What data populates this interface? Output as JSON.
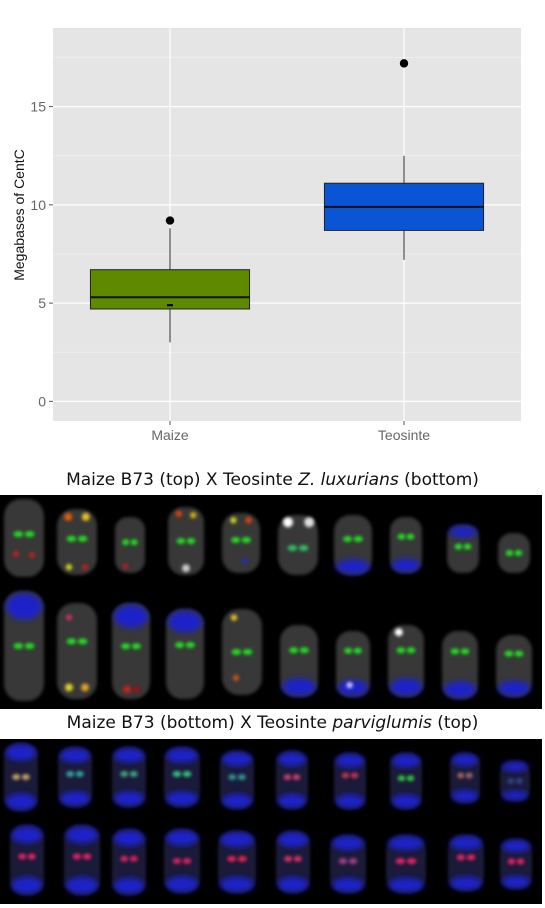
{
  "chart_data": {
    "type": "box",
    "ylabel": "Megabases of CentC",
    "xlabel": "",
    "ylim": [
      -1,
      19
    ],
    "yticks": [
      0,
      5,
      10,
      15
    ],
    "categories": [
      "Maize",
      "Teosinte"
    ],
    "grid": true,
    "boxes": [
      {
        "category": "Maize",
        "color": "#5e8a00",
        "whisker_low": 3.0,
        "q1": 4.7,
        "median": 5.3,
        "q3": 6.7,
        "whisker_high": 8.8,
        "outliers": [
          9.2
        ],
        "extra_points": [
          4.9
        ]
      },
      {
        "category": "Teosinte",
        "color": "#0a55d6",
        "whisker_low": 7.2,
        "q1": 8.7,
        "median": 9.9,
        "q3": 11.1,
        "whisker_high": 12.5,
        "outliers": [
          17.2
        ],
        "extra_points": []
      }
    ]
  },
  "captions": {
    "panel1": {
      "pre": "Maize B73 (top) X Teosinte ",
      "italic": "Z. luxurians",
      "post": " (bottom)"
    },
    "panel2": {
      "pre": "Maize B73 (bottom) X Teosinte ",
      "italic": "parviglumis",
      "post": " (top)"
    }
  },
  "colors": {
    "plot_bg": "#e5e5e5",
    "grid": "#ffffff",
    "panel_bg": "#000000",
    "centc_signal": "#22dd22"
  }
}
